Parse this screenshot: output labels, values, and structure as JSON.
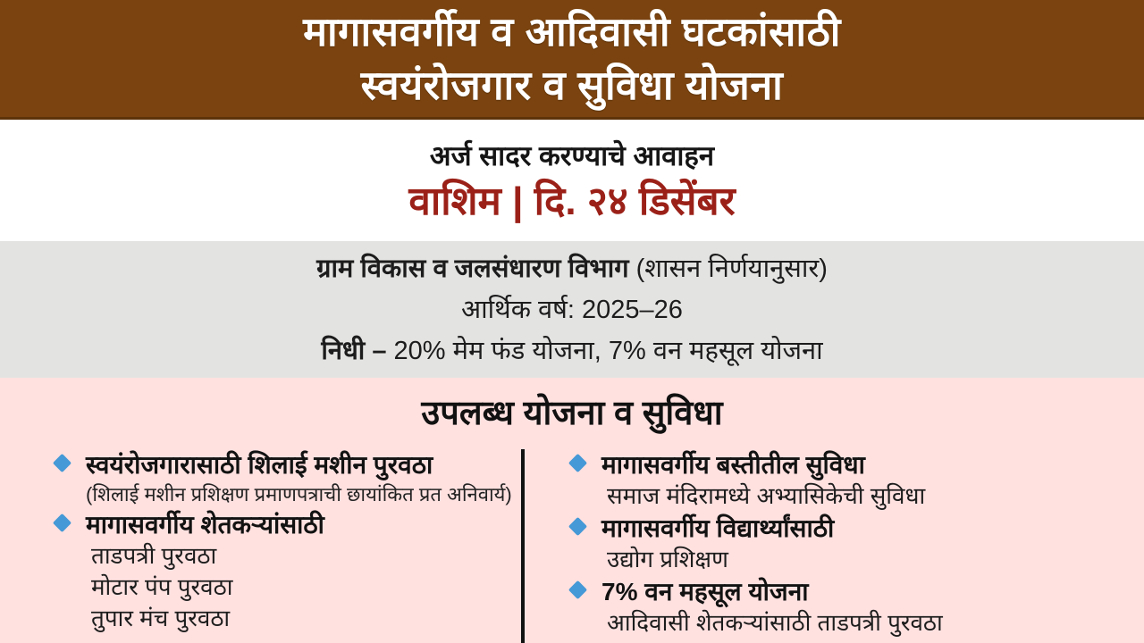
{
  "header": {
    "title_line1": "मागासवर्गीय व आदिवासी घटकांसाठी",
    "title_line2": "स्वयंरोजगार व सुविधा योजना"
  },
  "announcement": {
    "call_line": "अर्ज सादर करण्याचे आवाहन",
    "location_date": "वाशिम | दि. २४ डिसेंबर"
  },
  "department": {
    "name_bold": "ग्राम विकास व जलसंधारण विभाग",
    "name_note": " (शासन निर्णयानुसार)",
    "fiscal_year": "आर्थिक वर्ष: 2025–26",
    "fund_label": "निधी – ",
    "fund_detail": "20% मेम फंड योजना, 7% वन महसूल योजना"
  },
  "schemes": {
    "heading": "उपलब्ध योजना व सुविधा",
    "left": [
      {
        "title": "स्वयंरोजगारासाठी शिलाई मशीन पुरवठा",
        "note": "(शिलाई मशीन प्रशिक्षण प्रमाणपत्राची  छायांकित प्रत अनिवार्य)",
        "subs": []
      },
      {
        "title": "मागासवर्गीय शेतकऱ्यांसाठी",
        "subs": [
          "ताडपत्री पुरवठा",
          "मोटार पंप पुरवठा",
          "तुपार मंच पुरवठा"
        ]
      }
    ],
    "right": [
      {
        "title": "मागासवर्गीय बस्तीतील सुविधा",
        "subs": [
          "समाज मंदिरामध्ये अभ्यासिकेची सुविधा"
        ]
      },
      {
        "title": "मागासवर्गीय विद्यार्थ्यांसाठी",
        "subs": [
          "उद्योग प्रशिक्षण"
        ]
      },
      {
        "title": "7% वन महसूल योजना",
        "subs": [
          "आदिवासी शेतकऱ्यांसाठी ताडपत्री पुरवठा"
        ]
      }
    ]
  },
  "colors": {
    "header_brown": "#7a430f",
    "header_brown_edge": "#5e330a",
    "accent_red": "#9b2118",
    "band_gray": "#e3e4e2",
    "band_pink": "#ffe1e0",
    "bullet_blue": "#4599d6",
    "divider_black": "#111111",
    "text_white": "#ffffff"
  }
}
